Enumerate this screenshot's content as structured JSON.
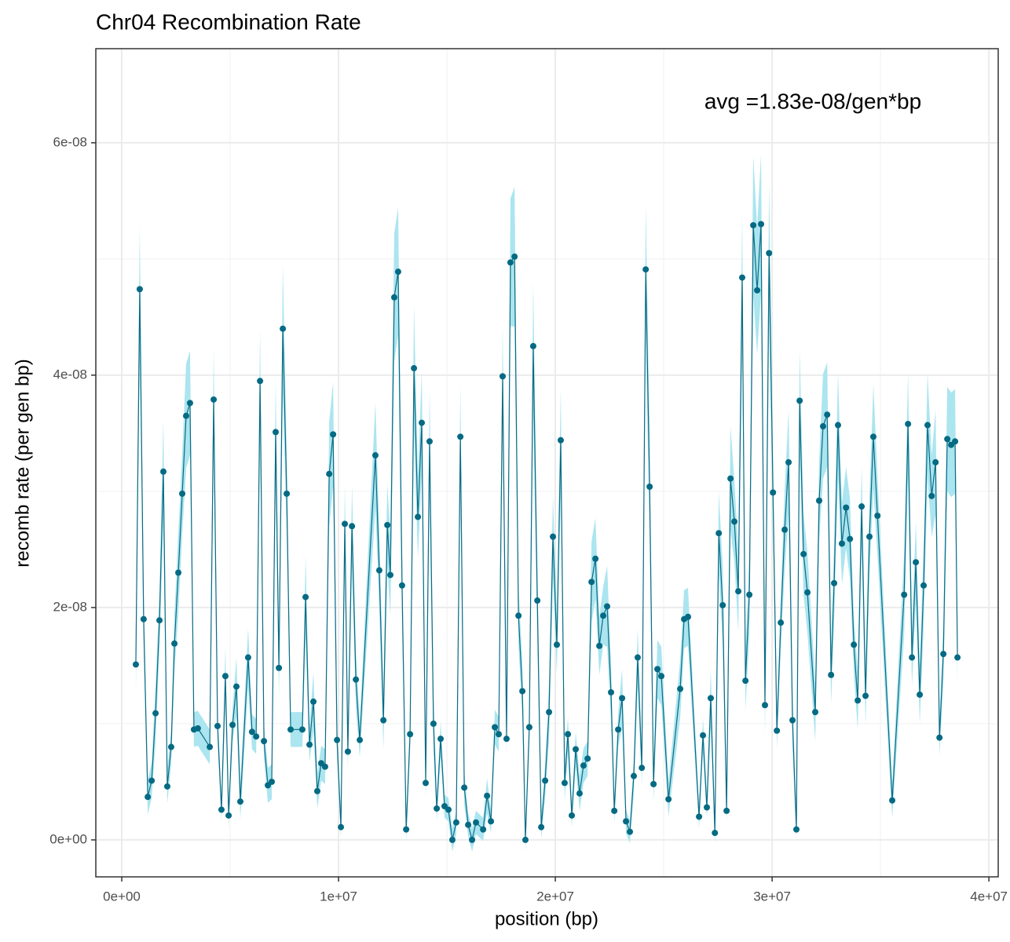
{
  "chart_data": {
    "type": "line",
    "title": "Chr04 Recombination Rate",
    "annotation": "avg =1.83e-08/gen*bp",
    "x_label": "position (bp)",
    "y_label": "recomb rate (per gen bp)",
    "line_color": "#0b6b84",
    "point_color": "#056a83",
    "band_color": "#abe5ef",
    "grid": true,
    "xlim": [
      -1196000,
      40430000
    ],
    "ylim": [
      -3.18e-09,
      6.81e-08
    ],
    "xticks": [
      {
        "value": 0,
        "label": "0e+00"
      },
      {
        "value": 10000000,
        "label": "1e+07"
      },
      {
        "value": 20000000,
        "label": "2e+07"
      },
      {
        "value": 30000000,
        "label": "3e+07"
      },
      {
        "value": 40000000,
        "label": "4e+07"
      }
    ],
    "yticks": [
      {
        "value": 0,
        "label": "0e+00"
      },
      {
        "value": 2e-08,
        "label": "2e-08"
      },
      {
        "value": 4e-08,
        "label": "4e-08"
      },
      {
        "value": 6e-08,
        "label": "6e-08"
      }
    ],
    "x": [
      650000,
      830000,
      1010000,
      1200000,
      1380000,
      1560000,
      1740000,
      1920000,
      2100000,
      2280000,
      2430000,
      2610000,
      2790000,
      2970000,
      3150000,
      3330000,
      3510000,
      4060000,
      4240000,
      4420000,
      4600000,
      4780000,
      4930000,
      5110000,
      5290000,
      5470000,
      5830000,
      6010000,
      6200000,
      6380000,
      6560000,
      6740000,
      6920000,
      7100000,
      7250000,
      7430000,
      7610000,
      7790000,
      8330000,
      8480000,
      8660000,
      8840000,
      9020000,
      9200000,
      9380000,
      9570000,
      9750000,
      9930000,
      10110000,
      10290000,
      10430000,
      10620000,
      10800000,
      10980000,
      11700000,
      11880000,
      12070000,
      12250000,
      12390000,
      12570000,
      12750000,
      12930000,
      13120000,
      13300000,
      13480000,
      13660000,
      13840000,
      14020000,
      14200000,
      14380000,
      14530000,
      14710000,
      14890000,
      15070000,
      15250000,
      15430000,
      15620000,
      15800000,
      15980000,
      16160000,
      16340000,
      16670000,
      16850000,
      17030000,
      17210000,
      17390000,
      17570000,
      17750000,
      17930000,
      18120000,
      18300000,
      18480000,
      18620000,
      18800000,
      18980000,
      19170000,
      19350000,
      19530000,
      19710000,
      19890000,
      20070000,
      20250000,
      20430000,
      20580000,
      20760000,
      20940000,
      21120000,
      21300000,
      21490000,
      21670000,
      21850000,
      22030000,
      22210000,
      22390000,
      22570000,
      22720000,
      22900000,
      23080000,
      23260000,
      23440000,
      23620000,
      23800000,
      23990000,
      24170000,
      24350000,
      24530000,
      24710000,
      24890000,
      25220000,
      25760000,
      25940000,
      26120000,
      26630000,
      26810000,
      26990000,
      27170000,
      27360000,
      27540000,
      27720000,
      27900000,
      28080000,
      28260000,
      28440000,
      28620000,
      28770000,
      28950000,
      29130000,
      29310000,
      29490000,
      29670000,
      29860000,
      30040000,
      30220000,
      30400000,
      30580000,
      30760000,
      30940000,
      31120000,
      31270000,
      31450000,
      31630000,
      31990000,
      32170000,
      32350000,
      32540000,
      32720000,
      32860000,
      33040000,
      33220000,
      33410000,
      33590000,
      33770000,
      33950000,
      34130000,
      34310000,
      34490000,
      34670000,
      34860000,
      35540000,
      36090000,
      36270000,
      36450000,
      36630000,
      36810000,
      36990000,
      37170000,
      37360000,
      37540000,
      37720000,
      37900000,
      38080000,
      38260000,
      38440000,
      38550000
    ],
    "values": [
      1.51e-08,
      4.74e-08,
      1.9e-08,
      3.7e-09,
      5.1e-09,
      1.09e-08,
      1.89e-08,
      3.17e-08,
      4.6e-09,
      8e-09,
      1.69e-08,
      2.3e-08,
      2.98e-08,
      3.65e-08,
      3.76e-08,
      9.5e-09,
      9.6e-09,
      8e-09,
      3.79e-08,
      9.8e-09,
      2.6e-09,
      1.41e-08,
      2.1e-09,
      9.9e-09,
      1.32e-08,
      3.3e-09,
      1.57e-08,
      9.3e-09,
      8.9e-09,
      3.95e-08,
      8.5e-09,
      4.7e-09,
      5e-09,
      3.51e-08,
      1.48e-08,
      4.4e-08,
      2.98e-08,
      9.5e-09,
      9.5e-09,
      2.09e-08,
      8.2e-09,
      1.19e-08,
      4.2e-09,
      6.6e-09,
      6.3e-09,
      3.15e-08,
      3.49e-08,
      8.6e-09,
      1.1e-09,
      2.72e-08,
      7.6e-09,
      2.7e-08,
      1.38e-08,
      8.6e-09,
      3.31e-08,
      2.32e-08,
      1.03e-08,
      2.71e-08,
      2.28e-08,
      4.67e-08,
      4.89e-08,
      2.19e-08,
      9e-10,
      9.1e-09,
      4.06e-08,
      2.78e-08,
      3.59e-08,
      4.9e-09,
      3.43e-08,
      1e-08,
      2.7e-09,
      8.7e-09,
      2.9e-09,
      2.6e-09,
      0,
      1.5e-09,
      3.47e-08,
      4.5e-09,
      1.3e-09,
      0,
      1.5e-09,
      9e-10,
      3.8e-09,
      1.6e-09,
      9.7e-09,
      9.1e-09,
      3.99e-08,
      8.7e-09,
      4.97e-08,
      5.02e-08,
      1.93e-08,
      1.28e-08,
      0,
      9.7e-09,
      4.25e-08,
      2.06e-08,
      1.1e-09,
      5.1e-09,
      1.1e-08,
      2.61e-08,
      1.68e-08,
      3.44e-08,
      4.9e-09,
      9.1e-09,
      2.1e-09,
      7.8e-09,
      4e-09,
      6.4e-09,
      7e-09,
      2.22e-08,
      2.42e-08,
      1.67e-08,
      1.93e-08,
      2.01e-08,
      1.27e-08,
      2.5e-09,
      9.5e-09,
      1.22e-08,
      1.6e-09,
      7e-10,
      5.5e-09,
      1.57e-08,
      6.2e-09,
      4.91e-08,
      3.04e-08,
      4.8e-09,
      1.47e-08,
      1.41e-08,
      3.5e-09,
      1.3e-08,
      1.9e-08,
      1.92e-08,
      2e-09,
      9e-09,
      2.8e-09,
      1.22e-08,
      6e-10,
      2.64e-08,
      2.02e-08,
      2.5e-09,
      3.11e-08,
      2.74e-08,
      2.14e-08,
      4.84e-08,
      1.37e-08,
      2.11e-08,
      5.29e-08,
      4.73e-08,
      5.3e-08,
      1.16e-08,
      5.05e-08,
      2.99e-08,
      9.4e-09,
      1.87e-08,
      2.67e-08,
      3.25e-08,
      1.03e-08,
      9e-10,
      3.78e-08,
      2.46e-08,
      2.13e-08,
      1.1e-08,
      2.92e-08,
      3.56e-08,
      3.66e-08,
      1.42e-08,
      2.21e-08,
      3.57e-08,
      2.55e-08,
      2.86e-08,
      2.59e-08,
      1.68e-08,
      1.2e-08,
      2.87e-08,
      1.24e-08,
      2.61e-08,
      3.47e-08,
      2.79e-08,
      3.4e-09,
      2.11e-08,
      3.58e-08,
      1.57e-08,
      2.39e-08,
      1.25e-08,
      2.19e-08,
      3.57e-08,
      2.96e-08,
      3.25e-08,
      8.8e-09,
      1.6e-08,
      3.45e-08,
      3.4e-08,
      3.43e-08,
      1.57e-08
    ],
    "errors": [
      2.5e-09,
      5.5e-09,
      2.5e-09,
      1.5e-09,
      1.5e-09,
      2.5e-09,
      2.5e-09,
      4.5e-09,
      1.5e-09,
      1.5e-09,
      2.5e-09,
      3.5e-09,
      3.5e-09,
      4.5e-09,
      4.5e-09,
      1.5e-09,
      1.5e-09,
      1.5e-09,
      4.5e-09,
      1.5e-09,
      1e-09,
      2.5e-09,
      1e-09,
      1.5e-09,
      2.5e-09,
      1.5e-09,
      2.5e-09,
      1.5e-09,
      1.5e-09,
      4.5e-09,
      1.5e-09,
      1.5e-09,
      1.5e-09,
      4.5e-09,
      2.5e-09,
      5.5e-09,
      3.5e-09,
      1.5e-09,
      1.5e-09,
      3.5e-09,
      1.5e-09,
      2.5e-09,
      1.5e-09,
      1.5e-09,
      1.5e-09,
      4.5e-09,
      4.5e-09,
      1.5e-09,
      1e-09,
      3.5e-09,
      1.5e-09,
      3.5e-09,
      2.5e-09,
      1.5e-09,
      4.5e-09,
      3.5e-09,
      2.5e-09,
      3.5e-09,
      3.5e-09,
      5.5e-09,
      5.5e-09,
      3.5e-09,
      1e-09,
      1.5e-09,
      5.5e-09,
      3.5e-09,
      4.5e-09,
      1.5e-09,
      4.5e-09,
      2.5e-09,
      1e-09,
      1.5e-09,
      1e-09,
      1e-09,
      1e-09,
      1e-09,
      4.5e-09,
      1.5e-09,
      1e-09,
      1e-09,
      1e-09,
      1e-09,
      1.5e-09,
      1e-09,
      1.5e-09,
      1.5e-09,
      4.5e-09,
      1.5e-09,
      5.5e-09,
      6e-09,
      2.5e-09,
      2.5e-09,
      1e-09,
      1.5e-09,
      5.5e-09,
      3.5e-09,
      1e-09,
      1.5e-09,
      2.5e-09,
      3.5e-09,
      2.5e-09,
      4.5e-09,
      1.5e-09,
      1.5e-09,
      1e-09,
      1.5e-09,
      1.5e-09,
      1.5e-09,
      1.5e-09,
      3.5e-09,
      3.5e-09,
      2.5e-09,
      2.5e-09,
      3.5e-09,
      2.5e-09,
      1e-09,
      1.5e-09,
      2.5e-09,
      1e-09,
      1e-09,
      1.5e-09,
      2.5e-09,
      1.5e-09,
      5.5e-09,
      4.5e-09,
      1.5e-09,
      2.5e-09,
      2.5e-09,
      1.5e-09,
      2.5e-09,
      2.5e-09,
      2.5e-09,
      1e-09,
      1.5e-09,
      1e-09,
      2.5e-09,
      1e-09,
      3.5e-09,
      3.5e-09,
      1e-09,
      4.5e-09,
      3.5e-09,
      3.5e-09,
      5.5e-09,
      2.5e-09,
      3.5e-09,
      6e-09,
      5.5e-09,
      6e-09,
      2.5e-09,
      6e-09,
      3.5e-09,
      1.5e-09,
      2.5e-09,
      3.5e-09,
      4.5e-09,
      2.5e-09,
      1e-09,
      4.5e-09,
      3.5e-09,
      3.5e-09,
      2.5e-09,
      3.5e-09,
      4.5e-09,
      4.5e-09,
      2.5e-09,
      3.5e-09,
      4.5e-09,
      3.5e-09,
      3.5e-09,
      3.5e-09,
      2.5e-09,
      2.5e-09,
      3.5e-09,
      2.5e-09,
      3.5e-09,
      4.5e-09,
      3.5e-09,
      1.5e-09,
      3.5e-09,
      4.5e-09,
      2.5e-09,
      3.5e-09,
      2.5e-09,
      3.5e-09,
      4.5e-09,
      3.5e-09,
      4.5e-09,
      1.5e-09,
      2.5e-09,
      4.5e-09,
      4.5e-09,
      4.5e-09,
      2.5e-09
    ]
  }
}
